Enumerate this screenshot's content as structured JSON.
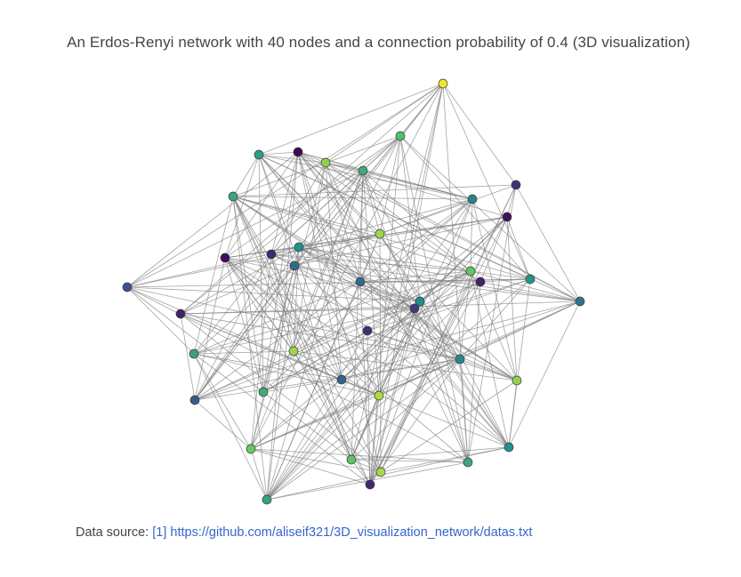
{
  "title": "An Erdos-Renyi network with 40 nodes and a connection probability of 0.4 (3D visualization)",
  "annotation": {
    "prefix": "Data source: ",
    "link_label": "[1]",
    "url": "https://github.com/aliseif321/3D_visualization_network/datas.txt"
  },
  "colors": {
    "edge": "#7f7f7f",
    "node_stroke": "#3a3a3a",
    "text": "#444444",
    "link": "#3366cc"
  },
  "chart_data": {
    "type": "network-3d",
    "nodes": 40,
    "connection_probability": 0.4,
    "colorscale": "viridis"
  }
}
